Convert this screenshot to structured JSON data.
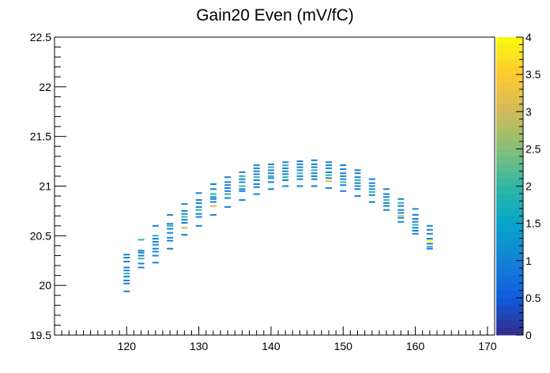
{
  "chart_data": {
    "type": "heatmap",
    "title": "Gain20 Even (mV/fC)",
    "xlabel": "",
    "ylabel": "",
    "xlim": [
      110,
      171
    ],
    "ylim": [
      19.5,
      22.5
    ],
    "x_ticks": [
      "120",
      "130",
      "140",
      "150",
      "160",
      "170"
    ],
    "y_ticks": [
      "19.5",
      "20",
      "20.5",
      "21",
      "21.5",
      "22",
      "22.5"
    ],
    "z_range": [
      0,
      4
    ],
    "colorbar_ticks": [
      "0",
      "0.5",
      "1",
      "1.5",
      "2",
      "2.5",
      "3",
      "3.5",
      "4"
    ],
    "grid": false,
    "colorscale": [
      "#352a87",
      "#0f5cdd",
      "#1481d6",
      "#06a4ca",
      "#2eb7a4",
      "#87bf77",
      "#d1bb59",
      "#fec832",
      "#f9fb0e"
    ],
    "columns": [
      {
        "x": 120,
        "y": [
          19.94,
          20.02,
          20.05,
          20.09,
          20.12,
          20.15,
          20.18,
          20.24,
          20.28,
          20.31
        ],
        "z": [
          1,
          1,
          1,
          1,
          2,
          1,
          1,
          1,
          1,
          1
        ]
      },
      {
        "x": 122,
        "y": [
          20.18,
          20.22,
          20.27,
          20.3,
          20.33,
          20.35,
          20.46
        ],
        "z": [
          1,
          1,
          2,
          1,
          1,
          1,
          2
        ]
      },
      {
        "x": 124,
        "y": [
          20.23,
          20.3,
          20.34,
          20.37,
          20.41,
          20.44,
          20.47,
          20.5,
          20.6
        ],
        "z": [
          1,
          1,
          1,
          1,
          1,
          1,
          1,
          2,
          1
        ]
      },
      {
        "x": 126,
        "y": [
          20.37,
          20.45,
          20.48,
          20.53,
          20.57,
          20.6,
          20.62,
          20.71
        ],
        "z": [
          1,
          1,
          1,
          1,
          1,
          2,
          1,
          1
        ]
      },
      {
        "x": 128,
        "y": [
          20.51,
          20.58,
          20.63,
          20.66,
          20.69,
          20.72,
          20.75,
          20.82
        ],
        "z": [
          1,
          3,
          1,
          1,
          2,
          1,
          1,
          1
        ]
      },
      {
        "x": 130,
        "y": [
          20.6,
          20.69,
          20.72,
          20.76,
          20.79,
          20.83,
          20.86,
          20.93
        ],
        "z": [
          1,
          1,
          1,
          2,
          1,
          1,
          1,
          1
        ]
      },
      {
        "x": 132,
        "y": [
          20.71,
          20.8,
          20.84,
          20.87,
          20.89,
          20.92,
          20.97,
          21.02
        ],
        "z": [
          1,
          3,
          1,
          1,
          1,
          2,
          1,
          1
        ]
      },
      {
        "x": 134,
        "y": [
          20.79,
          20.88,
          20.92,
          20.95,
          20.98,
          21.01,
          21.04,
          21.09
        ],
        "z": [
          1,
          1,
          2,
          1,
          1,
          1,
          1,
          1
        ]
      },
      {
        "x": 136,
        "y": [
          20.86,
          20.95,
          20.97,
          21.0,
          21.04,
          21.07,
          21.1,
          21.14
        ],
        "z": [
          1,
          1,
          1,
          2,
          1,
          1,
          2,
          1
        ]
      },
      {
        "x": 138,
        "y": [
          20.92,
          20.99,
          21.02,
          21.06,
          21.09,
          21.12,
          21.15,
          21.18,
          21.21
        ],
        "z": [
          1,
          1,
          1,
          1,
          2,
          1,
          1,
          1,
          1
        ]
      },
      {
        "x": 140,
        "y": [
          20.97,
          21.04,
          21.08,
          21.1,
          21.13,
          21.16,
          21.19,
          21.22
        ],
        "z": [
          1,
          1,
          1,
          2,
          1,
          1,
          2,
          1
        ]
      },
      {
        "x": 142,
        "y": [
          21.0,
          21.06,
          21.09,
          21.12,
          21.15,
          21.18,
          21.21,
          21.24
        ],
        "z": [
          1,
          1,
          2,
          1,
          1,
          1,
          2,
          1
        ]
      },
      {
        "x": 144,
        "y": [
          21.0,
          21.07,
          21.1,
          21.13,
          21.16,
          21.19,
          21.22,
          21.25
        ],
        "z": [
          1,
          1,
          1,
          2,
          1,
          1,
          1,
          1
        ]
      },
      {
        "x": 146,
        "y": [
          21.0,
          21.07,
          21.1,
          21.13,
          21.16,
          21.19,
          21.22,
          21.26
        ],
        "z": [
          1,
          1,
          1,
          1,
          2,
          1,
          1,
          1
        ]
      },
      {
        "x": 148,
        "y": [
          20.98,
          21.05,
          21.08,
          21.11,
          21.14,
          21.18,
          21.21,
          21.24
        ],
        "z": [
          1,
          3,
          1,
          2,
          1,
          1,
          1,
          1
        ]
      },
      {
        "x": 150,
        "y": [
          20.95,
          21.01,
          21.04,
          21.07,
          21.1,
          21.13,
          21.17,
          21.21
        ],
        "z": [
          1,
          1,
          2,
          1,
          1,
          1,
          1,
          1
        ]
      },
      {
        "x": 152,
        "y": [
          20.9,
          20.97,
          21.0,
          21.03,
          21.06,
          21.09,
          21.13,
          21.16
        ],
        "z": [
          1,
          1,
          1,
          1,
          2,
          1,
          1,
          1
        ]
      },
      {
        "x": 154,
        "y": [
          20.84,
          20.91,
          20.94,
          20.97,
          21.0,
          21.03,
          21.07
        ],
        "z": [
          1,
          1,
          2,
          1,
          1,
          1,
          1
        ]
      },
      {
        "x": 156,
        "y": [
          20.76,
          20.8,
          20.83,
          20.86,
          20.89,
          20.92,
          20.97
        ],
        "z": [
          1,
          1,
          1,
          2,
          1,
          1,
          1
        ]
      },
      {
        "x": 158,
        "y": [
          20.64,
          20.68,
          20.7,
          20.73,
          20.76,
          20.8,
          20.83,
          20.87
        ],
        "z": [
          1,
          1,
          3,
          1,
          1,
          1,
          2,
          1
        ]
      },
      {
        "x": 160,
        "y": [
          20.52,
          20.55,
          20.58,
          20.61,
          20.64,
          20.67,
          20.71,
          20.77
        ],
        "z": [
          1,
          1,
          1,
          2,
          1,
          1,
          1,
          1
        ]
      },
      {
        "x": 162,
        "y": [
          20.37,
          20.39,
          20.42,
          20.45,
          20.47,
          20.52,
          20.56,
          20.6
        ],
        "z": [
          1,
          2,
          1,
          4,
          1,
          1,
          1,
          1
        ]
      }
    ]
  }
}
